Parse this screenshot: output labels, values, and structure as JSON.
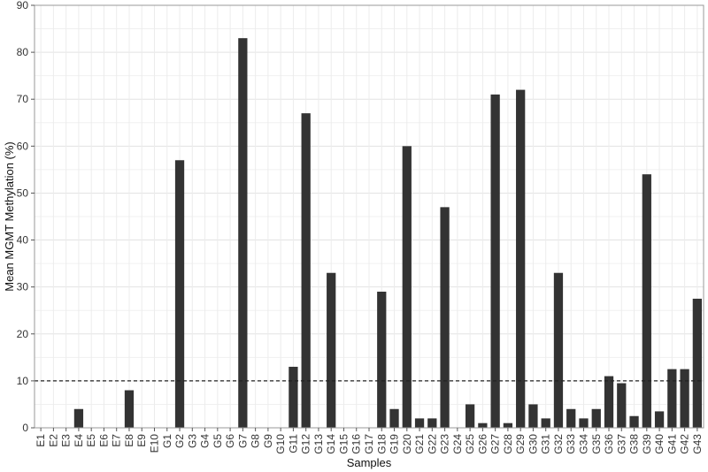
{
  "chart_data": {
    "type": "bar",
    "xlabel": "Samples",
    "ylabel": "Mean MGMT Methylation (%)",
    "ylim": [
      0,
      90
    ],
    "yticks": [
      0,
      10,
      20,
      30,
      40,
      50,
      60,
      70,
      80,
      90
    ],
    "grid": true,
    "reference_line": {
      "y": 10,
      "style": "dashed"
    },
    "bar_color": "#333333",
    "categories": [
      "E1",
      "E2",
      "E3",
      "E4",
      "E5",
      "E6",
      "E7",
      "E8",
      "E9",
      "E10",
      "G1",
      "G2",
      "G3",
      "G4",
      "G5",
      "G6",
      "G7",
      "G8",
      "G9",
      "G10",
      "G11",
      "G12",
      "G13",
      "G14",
      "G15",
      "G16",
      "G17",
      "G18",
      "G19",
      "G20",
      "G21",
      "G22",
      "G23",
      "G24",
      "G25",
      "G26",
      "G27",
      "G28",
      "G29",
      "G30",
      "G31",
      "G32",
      "G33",
      "G34",
      "G35",
      "G36",
      "G37",
      "G38",
      "G39",
      "G40",
      "G41",
      "G42",
      "G43"
    ],
    "values": [
      0,
      0,
      0,
      4,
      0,
      0,
      0,
      8,
      0,
      0,
      0,
      57,
      0,
      0,
      0,
      0,
      83,
      0,
      0,
      0,
      13,
      67,
      0,
      33,
      0,
      0,
      0,
      29,
      4,
      60,
      2,
      2,
      47,
      0,
      5,
      1,
      71,
      1,
      72,
      5,
      2,
      33,
      4,
      2,
      4,
      11,
      9.5,
      2.5,
      54,
      3.5,
      12.5,
      12.5,
      27.5
    ]
  }
}
